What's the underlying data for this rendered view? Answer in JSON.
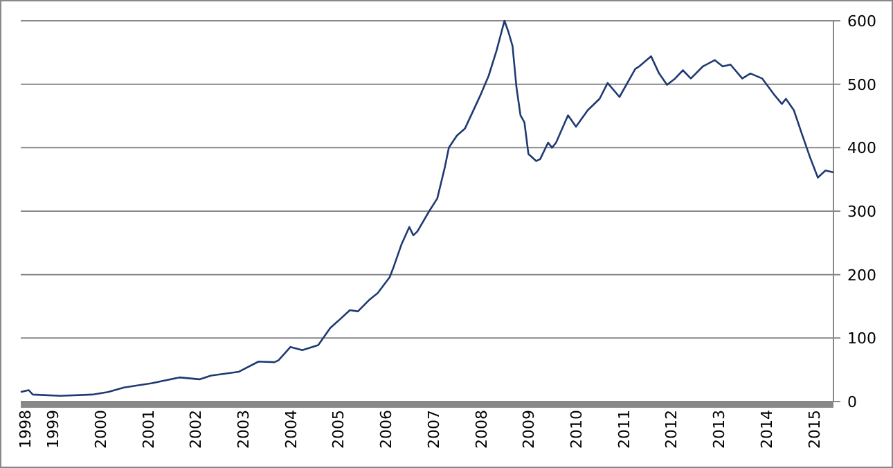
{
  "chart_data": {
    "type": "line",
    "xlim": [
      "1998-05",
      "2015-06"
    ],
    "xticks": [
      {
        "value": "1998-06",
        "label": "1998"
      },
      "1999",
      "2000",
      "2001",
      "2002",
      "2003",
      "2004",
      "2005",
      "2006",
      "2007",
      "2008",
      "2009",
      "2010",
      "2011",
      "2012",
      "2013",
      "2014",
      "2015"
    ],
    "ylim": [
      0,
      600
    ],
    "yticks": [
      0,
      100,
      200,
      300,
      400,
      500,
      600
    ],
    "grid": "y",
    "series": [
      {
        "color": "#1f3a73",
        "x": [
          "1998-05",
          "1998-07",
          "1998-08",
          "1999-03",
          "1999-11",
          "2000-03",
          "2000-07",
          "2001-02",
          "2001-09",
          "2002-02",
          "2002-05",
          "2002-12",
          "2003-05",
          "2003-09",
          "2003-10",
          "2004-01",
          "2004-04",
          "2004-08",
          "2004-11",
          "2005-01",
          "2005-04",
          "2005-06",
          "2005-09",
          "2005-11",
          "2006-02",
          "2006-03",
          "2006-05",
          "2006-07",
          "2006-08",
          "2006-09",
          "2006-12",
          "2007-02",
          "2007-04",
          "2007-05",
          "2007-07",
          "2007-09",
          "2008-01",
          "2008-03",
          "2008-05",
          "2008-07",
          "2008-08",
          "2008-09",
          "2008-10",
          "2008-11",
          "2008-12",
          "2009-01",
          "2009-03",
          "2009-04",
          "2009-06",
          "2009-07",
          "2009-08",
          "2009-11",
          "2010-01",
          "2010-04",
          "2010-07",
          "2010-09",
          "2010-12",
          "2011-04",
          "2011-05",
          "2011-08",
          "2011-10",
          "2011-12",
          "2012-02",
          "2012-04",
          "2012-06",
          "2012-09",
          "2012-12",
          "2013-02",
          "2013-04",
          "2013-07",
          "2013-09",
          "2013-12",
          "2014-03",
          "2014-05",
          "2014-06",
          "2014-08",
          "2014-10",
          "2014-12",
          "2015-02",
          "2015-04",
          "2015-06"
        ],
        "values": [
          15,
          18,
          11,
          9,
          11,
          15,
          22,
          29,
          38,
          35,
          41,
          47,
          63,
          62,
          65,
          86,
          81,
          89,
          116,
          127,
          144,
          142,
          161,
          171,
          196,
          211,
          247,
          275,
          262,
          268,
          300,
          320,
          370,
          400,
          419,
          430,
          484,
          513,
          553,
          600,
          582,
          560,
          495,
          451,
          440,
          390,
          379,
          382,
          408,
          400,
          408,
          451,
          433,
          459,
          477,
          502,
          480,
          524,
          528,
          544,
          517,
          499,
          509,
          522,
          509,
          528,
          538,
          528,
          531,
          509,
          517,
          509,
          484,
          469,
          477,
          459,
          422,
          386,
          353,
          364,
          361
        ]
      }
    ]
  }
}
